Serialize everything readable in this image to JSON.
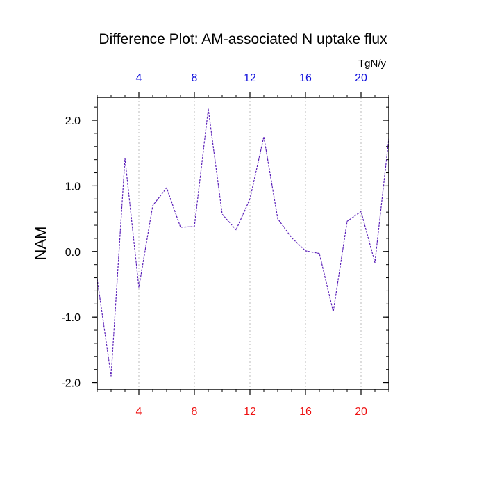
{
  "chart_data": {
    "type": "line",
    "title": "Difference Plot: AM-associated N uptake flux",
    "ylabel": "NAM",
    "top_axis_unit": "TgN/y",
    "x": [
      1,
      2,
      3,
      4,
      5,
      6,
      7,
      8,
      9,
      10,
      11,
      12,
      13,
      14,
      15,
      16,
      17,
      18,
      19,
      20,
      21,
      22
    ],
    "series": [
      {
        "values": [
          -0.42,
          -1.9,
          1.42,
          -0.55,
          0.7,
          0.97,
          0.37,
          0.38,
          2.17,
          0.57,
          0.33,
          0.8,
          1.75,
          0.5,
          0.21,
          0.01,
          -0.03,
          -0.92,
          0.46,
          0.61,
          -0.17,
          1.72
        ]
      }
    ],
    "xlim": [
      1,
      22
    ],
    "ylim": [
      -2.1,
      2.35
    ],
    "x_ticks": [
      4,
      8,
      12,
      16,
      20
    ],
    "x_tick_labels": [
      "4",
      "8",
      "12",
      "16",
      "20"
    ],
    "y_ticks": [
      -2.0,
      -1.0,
      0.0,
      1.0,
      2.0
    ],
    "y_tick_labels": [
      "-2.0",
      "-1.0",
      "0.0",
      "1.0",
      "2.0"
    ],
    "grid": "vertical-dotted",
    "colors": {
      "line": "#5a1fb8",
      "bottom_tick_labels": "#ee1111",
      "top_tick_labels": "#1111dd",
      "grid": "#bbbbbb",
      "axes": "#000000"
    }
  }
}
